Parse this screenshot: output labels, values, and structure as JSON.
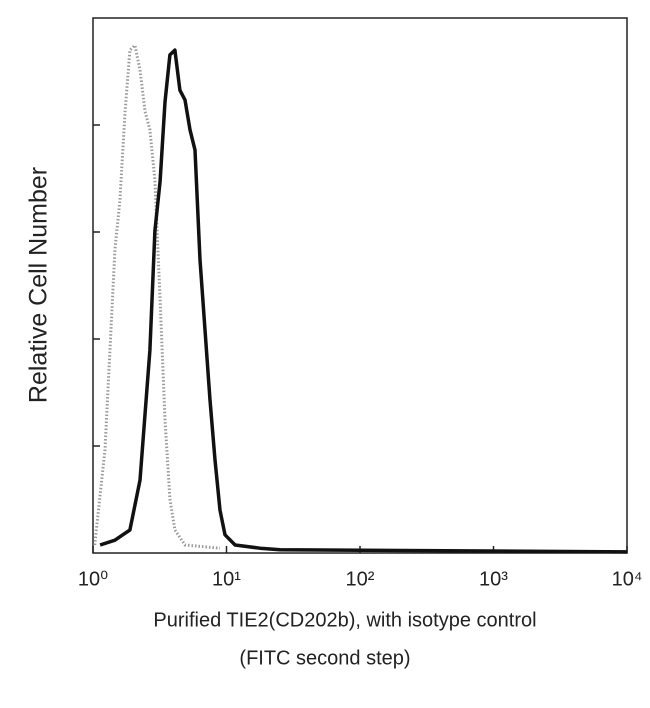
{
  "chart_data": {
    "type": "line",
    "y_label": "Relative Cell Number",
    "x_label": [
      "Purified TIE2(CD202b), with isotype control",
      "(FITC second step)"
    ],
    "x_scale": "log",
    "xlim": [
      1,
      10000
    ],
    "xticks": [
      {
        "value": 1,
        "label": "10⁰"
      },
      {
        "value": 10,
        "label": "10¹"
      },
      {
        "value": 100,
        "label": "10²"
      },
      {
        "value": 1000,
        "label": "10³"
      },
      {
        "value": 10000,
        "label": "10⁴"
      }
    ],
    "ylim": [
      0,
      100
    ],
    "yticks": [
      20,
      40,
      60,
      80
    ],
    "ytick_labels": false,
    "grid": false,
    "series": [
      {
        "color": "#9a9a9a",
        "style": "dotted",
        "x": [
          1.03,
          1.23,
          1.46,
          1.59,
          1.74,
          1.89,
          2.06,
          2.25,
          2.45,
          2.67,
          2.91,
          3.18,
          3.46,
          3.77,
          4.11,
          4.89,
          8.94
        ],
        "values": [
          1.5,
          19.3,
          56.6,
          65.9,
          82.6,
          94.0,
          94.9,
          90.3,
          82.6,
          79.1,
          69.7,
          47.3,
          24.9,
          10.1,
          4.3,
          1.5,
          0.9
        ]
      },
      {
        "color": "#111111",
        "style": "solid",
        "x": [
          1.13,
          1.46,
          1.89,
          2.25,
          2.67,
          2.91,
          3.18,
          3.46,
          3.77,
          4.11,
          4.48,
          4.89,
          5.33,
          5.81,
          6.33,
          6.9,
          7.52,
          8.2,
          8.94,
          9.74,
          11.6,
          17.8,
          25.2,
          10000
        ],
        "values": [
          1.5,
          2.4,
          4.3,
          13.6,
          37.9,
          60.2,
          69.5,
          84.3,
          93.1,
          94.0,
          86.5,
          84.7,
          79.1,
          75.3,
          54.8,
          41.7,
          28.6,
          17.4,
          8.0,
          3.4,
          1.5,
          0.9,
          0.6,
          0.2
        ]
      }
    ]
  }
}
